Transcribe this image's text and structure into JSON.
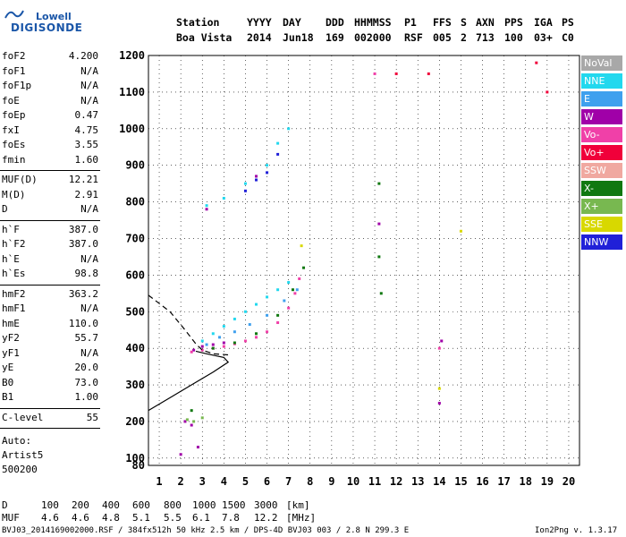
{
  "logo": {
    "top": "Lowell",
    "bottom": "DIGISONDE"
  },
  "header": {
    "labels": [
      "Station",
      "YYYY",
      "DAY",
      "DDD",
      "HHMMSS",
      "P1",
      "FFS",
      "S",
      "AXN",
      "PPS",
      "IGA",
      "PS"
    ],
    "values": [
      "Boa Vista",
      "2014",
      "Jun18",
      "169",
      "002000",
      "RSF",
      "005",
      "2",
      "713",
      "100",
      "03+",
      "C0"
    ]
  },
  "params": {
    "groups": [
      [
        {
          "k": "foF2",
          "v": "4.200"
        },
        {
          "k": "foF1",
          "v": "N/A"
        },
        {
          "k": "foF1p",
          "v": "N/A"
        },
        {
          "k": "foE",
          "v": "N/A"
        },
        {
          "k": "foEp",
          "v": "0.47"
        },
        {
          "k": "fxI",
          "v": "4.75"
        },
        {
          "k": "foEs",
          "v": "3.55"
        },
        {
          "k": "fmin",
          "v": "1.60"
        }
      ],
      [
        {
          "k": "MUF(D)",
          "v": "12.21"
        },
        {
          "k": "M(D)",
          "v": "2.91"
        },
        {
          "k": "D",
          "v": "N/A"
        }
      ],
      [
        {
          "k": "h`F",
          "v": "387.0"
        },
        {
          "k": "h`F2",
          "v": "387.0"
        },
        {
          "k": "h`E",
          "v": "N/A"
        },
        {
          "k": "h`Es",
          "v": "98.8"
        }
      ],
      [
        {
          "k": "hmF2",
          "v": "363.2"
        },
        {
          "k": "hmF1",
          "v": "N/A"
        },
        {
          "k": "hmE",
          "v": "110.0"
        },
        {
          "k": "yF2",
          "v": "55.7"
        },
        {
          "k": "yF1",
          "v": "N/A"
        },
        {
          "k": "yE",
          "v": "20.0"
        },
        {
          "k": "B0",
          "v": "73.0"
        },
        {
          "k": "B1",
          "v": "1.00"
        }
      ],
      [
        {
          "k": "C-level",
          "v": "55"
        }
      ]
    ],
    "auto": [
      "Auto:",
      "Artist5",
      "500200"
    ]
  },
  "legend": [
    {
      "label": "NoVal",
      "color": "#a8a8a8"
    },
    {
      "label": "NNE",
      "color": "#22d8ee"
    },
    {
      "label": "E",
      "color": "#3fa0ee"
    },
    {
      "label": "W",
      "color": "#a000a8"
    },
    {
      "label": "Vo-",
      "color": "#f040a8"
    },
    {
      "label": "Vo+",
      "color": "#f0003a"
    },
    {
      "label": "SSW",
      "color": "#f0a8a0"
    },
    {
      "label": "X-",
      "color": "#107810"
    },
    {
      "label": "X+",
      "color": "#78b850"
    },
    {
      "label": "SSE",
      "color": "#d8d800"
    },
    {
      "label": "NNW",
      "color": "#2020d8"
    }
  ],
  "footer": {
    "d_label": "D",
    "d_values": [
      "100",
      "200",
      "400",
      "600",
      "800",
      "1000",
      "1500",
      "3000"
    ],
    "d_unit": "[km]",
    "muf_label": "MUF",
    "muf_values": [
      "4.6",
      "4.6",
      "4.8",
      "5.1",
      "5.5",
      "6.1",
      "7.8",
      "12.2"
    ],
    "muf_unit": "[MHz]",
    "file_info": "BVJ03_2014169002000.RSF / 384fx512h 50 kHz 2.5 km / DPS-4D BVJ03 003 / 2.8 N 299.3 E",
    "version": "Ion2Png v. 1.3.17"
  },
  "chart_data": {
    "type": "scatter",
    "xlim": [
      0.5,
      20.5
    ],
    "ylim": [
      80,
      1200
    ],
    "x_ticks": [
      1,
      2,
      3,
      4,
      5,
      6,
      7,
      8,
      9,
      10,
      11,
      12,
      13,
      14,
      15,
      16,
      17,
      18,
      19,
      20
    ],
    "y_ticks": [
      80,
      100,
      200,
      300,
      400,
      500,
      600,
      700,
      800,
      900,
      1000,
      1100,
      1200
    ],
    "grid": true,
    "legend_position": "right",
    "series": [
      {
        "name": "NNE",
        "color": "#22d8ee",
        "points": [
          [
            3.0,
            420
          ],
          [
            3.5,
            440
          ],
          [
            4.0,
            460
          ],
          [
            4.5,
            480
          ],
          [
            5.0,
            500
          ],
          [
            5.5,
            520
          ],
          [
            6.0,
            540
          ],
          [
            6.5,
            560
          ],
          [
            7.0,
            580
          ],
          [
            3.2,
            790
          ],
          [
            4.0,
            810
          ],
          [
            5.0,
            850
          ],
          [
            6.0,
            900
          ],
          [
            6.5,
            960
          ],
          [
            7.0,
            1000
          ]
        ]
      },
      {
        "name": "E",
        "color": "#3fa0ee",
        "points": [
          [
            3.2,
            410
          ],
          [
            3.8,
            430
          ],
          [
            4.5,
            445
          ],
          [
            5.2,
            465
          ],
          [
            6.0,
            490
          ],
          [
            6.8,
            530
          ],
          [
            7.4,
            560
          ]
        ]
      },
      {
        "name": "W",
        "color": "#a000a8",
        "points": [
          [
            2.6,
            395
          ],
          [
            3.0,
            405
          ],
          [
            3.5,
            410
          ],
          [
            4.0,
            415
          ],
          [
            2.2,
            200
          ],
          [
            2.5,
            190
          ],
          [
            2.8,
            130
          ],
          [
            2.0,
            110
          ],
          [
            3.2,
            780
          ],
          [
            5.5,
            870
          ],
          [
            14.0,
            250
          ],
          [
            14.1,
            420
          ],
          [
            11.2,
            740
          ]
        ]
      },
      {
        "name": "Vo-",
        "color": "#f040a8",
        "points": [
          [
            2.5,
            390
          ],
          [
            3.0,
            395
          ],
          [
            3.5,
            400
          ],
          [
            4.0,
            405
          ],
          [
            4.5,
            412
          ],
          [
            5.0,
            420
          ],
          [
            5.5,
            430
          ],
          [
            6.0,
            445
          ],
          [
            6.5,
            470
          ],
          [
            7.0,
            510
          ],
          [
            7.3,
            550
          ],
          [
            7.5,
            590
          ],
          [
            11.0,
            1150
          ],
          [
            14.0,
            400
          ]
        ]
      },
      {
        "name": "Vo+",
        "color": "#f0003a",
        "points": [
          [
            12.0,
            1150
          ],
          [
            13.5,
            1150
          ],
          [
            18.5,
            1180
          ],
          [
            19.0,
            1100
          ]
        ]
      },
      {
        "name": "X-",
        "color": "#107810",
        "points": [
          [
            3.5,
            400
          ],
          [
            4.5,
            415
          ],
          [
            5.5,
            440
          ],
          [
            6.5,
            490
          ],
          [
            7.2,
            560
          ],
          [
            7.7,
            620
          ],
          [
            11.2,
            650
          ],
          [
            11.3,
            550
          ],
          [
            11.2,
            850
          ],
          [
            2.5,
            230
          ]
        ]
      },
      {
        "name": "X+",
        "color": "#78b850",
        "points": [
          [
            2.3,
            205
          ],
          [
            2.6,
            200
          ],
          [
            3.0,
            210
          ]
        ]
      },
      {
        "name": "SSE",
        "color": "#d8d800",
        "points": [
          [
            7.6,
            680
          ],
          [
            14.0,
            290
          ],
          [
            15.0,
            720
          ]
        ]
      },
      {
        "name": "NNW",
        "color": "#2020d8",
        "points": [
          [
            5.0,
            830
          ],
          [
            5.5,
            860
          ],
          [
            6.0,
            880
          ],
          [
            6.5,
            930
          ]
        ]
      }
    ],
    "lines": [
      {
        "style": "dashed",
        "points": [
          [
            0.5,
            545
          ],
          [
            1.5,
            500
          ],
          [
            2.2,
            450
          ],
          [
            2.7,
            412
          ],
          [
            3.0,
            395
          ],
          [
            3.5,
            385
          ],
          [
            4.2,
            382
          ]
        ]
      },
      {
        "style": "solid",
        "points": [
          [
            0.5,
            230
          ],
          [
            1.5,
            265
          ],
          [
            2.5,
            300
          ],
          [
            3.5,
            335
          ],
          [
            4.2,
            362
          ],
          [
            4.0,
            375
          ],
          [
            3.2,
            385
          ],
          [
            2.7,
            392
          ]
        ]
      }
    ]
  }
}
